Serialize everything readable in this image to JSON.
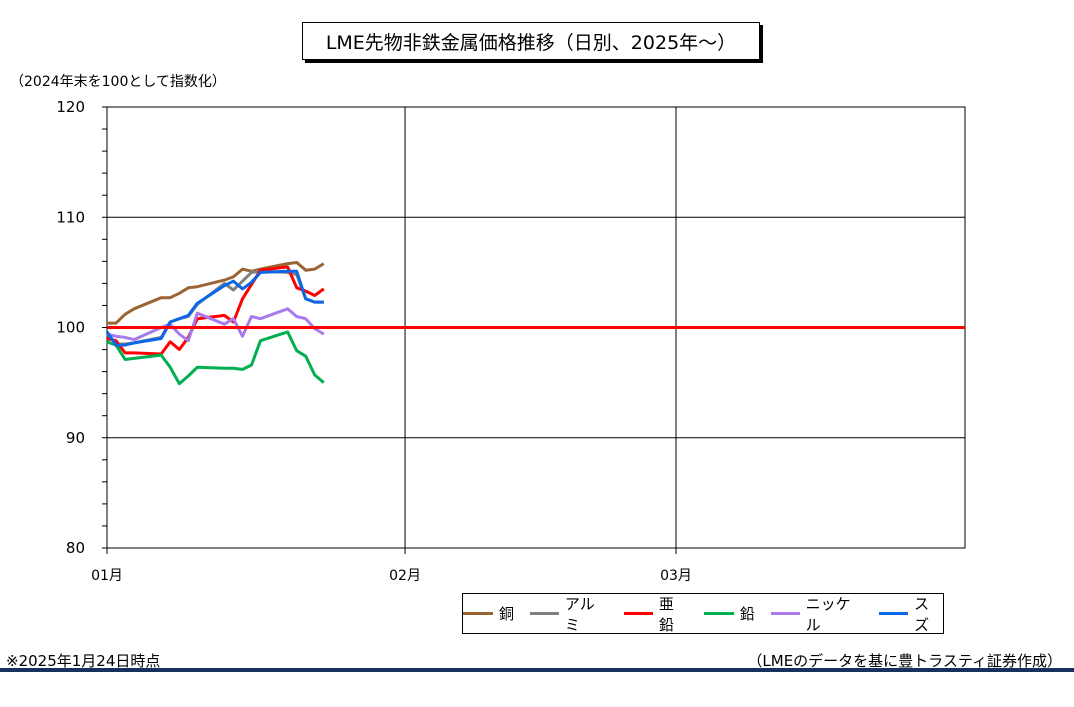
{
  "header": {
    "title": "LME先物非鉄金属価格推移（日別、2025年～）",
    "unit_note": "（2024年末を100として指数化）"
  },
  "footer": {
    "as_of": "※2025年1月24日時点",
    "source": "（LMEのデータを基に豊トラスティ証券作成）"
  },
  "chart_data": {
    "type": "line",
    "title": "LME先物非鉄金属価格推移（日別、2025年～）",
    "ylabel": "（2024年末を100として指数化）",
    "xlabel": "",
    "ylim": [
      80,
      120
    ],
    "yticks": [
      80,
      90,
      100,
      110,
      120
    ],
    "xlim": [
      0,
      95
    ],
    "xticks": [
      {
        "label": "01月",
        "x": 0
      },
      {
        "label": "02月",
        "x": 33
      },
      {
        "label": "03月",
        "x": 63
      }
    ],
    "grid": true,
    "legend_position": "bottom-right",
    "baseline": {
      "value": 100,
      "color": "#ff0000"
    },
    "x": [
      0,
      1,
      2,
      3,
      6,
      7,
      8,
      9,
      10,
      13,
      14,
      15,
      16,
      17,
      20,
      21,
      22,
      23,
      24
    ],
    "series": [
      {
        "name": "銅",
        "color": "#9b6433",
        "values": [
          100.4,
          100.4,
          101.2,
          101.7,
          102.7,
          102.7,
          103.1,
          103.6,
          103.7,
          104.3,
          104.6,
          105.3,
          105.1,
          105.3,
          105.8,
          105.9,
          105.2,
          105.3,
          105.8
        ]
      },
      {
        "name": "アルミ",
        "color": "#808080",
        "values": [
          99.5,
          98.5,
          98.5,
          98.6,
          99.1,
          100.5,
          100.8,
          101.0,
          102.1,
          104.0,
          103.4,
          104.2,
          105.0,
          105.1,
          105.0,
          104.8,
          102.6,
          102.3,
          102.3
        ]
      },
      {
        "name": "亜鉛",
        "color": "#ff0000",
        "values": [
          99.0,
          98.8,
          97.7,
          97.7,
          97.6,
          98.7,
          98.0,
          99.1,
          100.8,
          101.1,
          100.5,
          102.6,
          103.9,
          105.2,
          105.5,
          103.6,
          103.3,
          102.9,
          103.5
        ]
      },
      {
        "name": "鉛",
        "color": "#00b050",
        "values": [
          98.7,
          98.4,
          97.1,
          97.2,
          97.5,
          96.4,
          94.9,
          95.6,
          96.4,
          96.3,
          96.3,
          96.2,
          96.6,
          98.8,
          99.6,
          97.9,
          97.4,
          95.7,
          95.0
        ]
      },
      {
        "name": "ニッケル",
        "color": "#a97aee",
        "values": [
          99.4,
          99.2,
          99.1,
          98.9,
          100.0,
          100.3,
          99.4,
          98.8,
          101.3,
          100.3,
          100.8,
          99.2,
          101.0,
          100.8,
          101.7,
          101.0,
          100.8,
          99.9,
          99.4
        ]
      },
      {
        "name": "スズ",
        "color": "#0b66e8",
        "values": [
          99.6,
          98.4,
          98.4,
          98.6,
          99.0,
          100.5,
          100.8,
          101.1,
          102.2,
          103.8,
          104.2,
          103.5,
          104.1,
          105.0,
          105.1,
          105.1,
          102.6,
          102.3,
          102.3
        ]
      }
    ]
  }
}
